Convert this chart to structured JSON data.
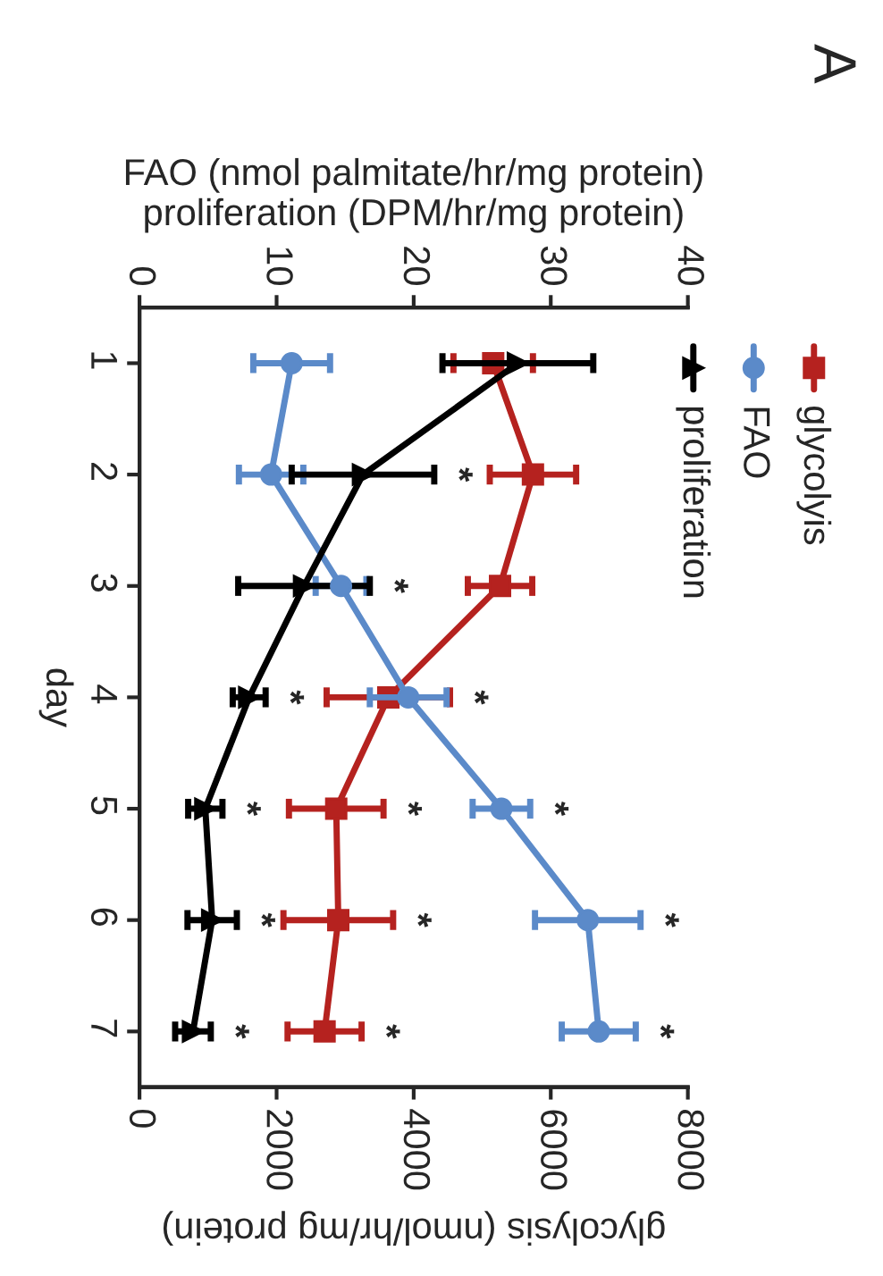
{
  "chart_data": {
    "type": "line",
    "orientation": "horizontal",
    "categories": [
      "1",
      "2",
      "3",
      "4",
      "5",
      "6",
      "7"
    ],
    "ylabel": "day",
    "x2label": "FAO (nmol palmitate/hr/mg protein)\nproliferation (DPM/hr/mg protein)",
    "xlabel": "glycolysis (nmol/hr/mg protein)",
    "x2lim": [
      0,
      40
    ],
    "x2ticks": [
      0,
      10,
      20,
      30,
      40
    ],
    "xlim": [
      0,
      8000
    ],
    "xticks": [
      0,
      2000,
      4000,
      6000,
      8000
    ],
    "grid": false,
    "legend": "top right",
    "series": [
      {
        "name": "glycolyis",
        "color": "#b5221f",
        "marker": "square",
        "values": [
          5160,
          5740,
          5260,
          3630,
          2870,
          2900,
          2700
        ],
        "errors": [
          580,
          630,
          470,
          900,
          690,
          800,
          540
        ],
        "value_labels": [
          null,
          null,
          null,
          "*",
          "*",
          "*",
          "*"
        ]
      },
      {
        "name": "FAO",
        "color": "#5b8ac9",
        "marker": "circle",
        "axis": "x2",
        "values": [
          11.1,
          9.6,
          14.7,
          19.6,
          26.4,
          32.7,
          33.5
        ],
        "errors": [
          2.8,
          2.35,
          1.85,
          2.8,
          2.1,
          3.85,
          2.7
        ],
        "value_labels": [
          null,
          null,
          null,
          null,
          "*",
          "*",
          "*"
        ]
      },
      {
        "name": "proliferation",
        "color": "#000000",
        "marker": "triangle",
        "axis": "x2",
        "values": [
          27.6,
          16.3,
          12.0,
          8.0,
          4.8,
          5.3,
          3.9
        ],
        "errors": [
          5.5,
          5.2,
          4.8,
          1.2,
          1.25,
          1.8,
          1.3
        ],
        "value_labels": [
          null,
          "*",
          "*",
          "*",
          "*",
          "*",
          "*"
        ]
      }
    ],
    "annotations": [
      "A"
    ]
  }
}
